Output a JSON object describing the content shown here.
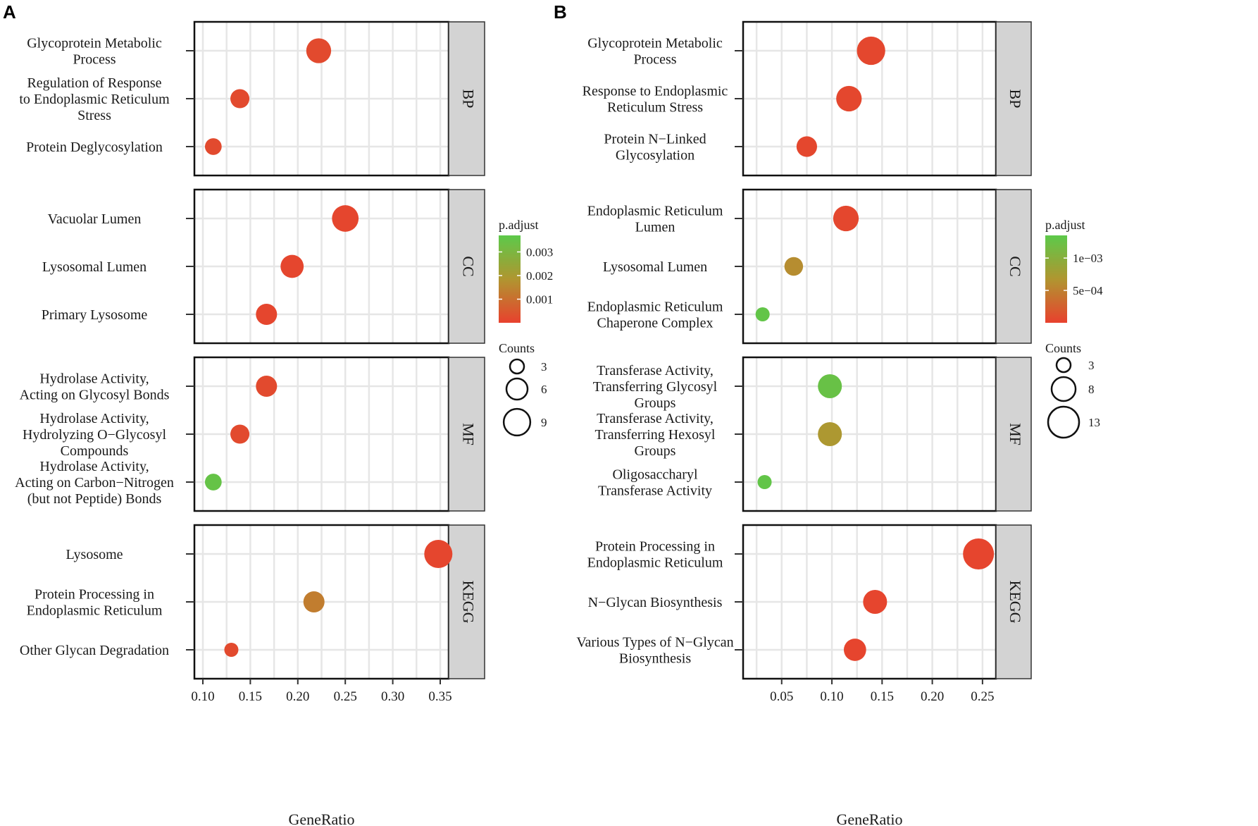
{
  "chart_data": [
    {
      "type": "scatter",
      "panel_label": "A",
      "xlabel": "GeneRatio",
      "xlim": [
        0.1,
        0.35
      ],
      "x_ticks": [
        0.1,
        0.15,
        0.2,
        0.25,
        0.3,
        0.35
      ],
      "x_tick_labels": [
        "0.10",
        "0.15",
        "0.20",
        "0.25",
        "0.30",
        "0.35"
      ],
      "color_legend": {
        "title": "p.adjust",
        "min": 0,
        "max": 0.0037,
        "ticks": [
          0.003,
          0.002,
          0.001
        ],
        "tick_labels": [
          "0.003",
          "0.002",
          "0.001"
        ],
        "low_color": "#e8412e",
        "high_color": "#5cc94a"
      },
      "size_legend": {
        "title": "Counts",
        "values": [
          3,
          6,
          9
        ],
        "labels": [
          "3",
          "6",
          "9"
        ]
      },
      "facets": [
        {
          "name": "BP",
          "terms": [
            {
              "label": [
                "Glycoprotein Metabolic",
                "Process"
              ],
              "x": 0.222,
              "count": 8,
              "p_adjust": 0.0002
            },
            {
              "label": [
                "Regulation of Response",
                "to Endoplasmic Reticulum",
                "Stress"
              ],
              "x": 0.139,
              "count": 5,
              "p_adjust": 0.0002
            },
            {
              "label": [
                "Protein Deglycosylation"
              ],
              "x": 0.111,
              "count": 4,
              "p_adjust": 0.0002
            }
          ]
        },
        {
          "name": "CC",
          "terms": [
            {
              "label": [
                "Vacuolar Lumen"
              ],
              "x": 0.25,
              "count": 9,
              "p_adjust": 0.0001
            },
            {
              "label": [
                "Lysosomal Lumen"
              ],
              "x": 0.194,
              "count": 7,
              "p_adjust": 0.0001
            },
            {
              "label": [
                "Primary Lysosome"
              ],
              "x": 0.167,
              "count": 6,
              "p_adjust": 0.0001
            }
          ]
        },
        {
          "name": "MF",
          "terms": [
            {
              "label": [
                "Hydrolase Activity,",
                "Acting on Glycosyl Bonds"
              ],
              "x": 0.167,
              "count": 6,
              "p_adjust": 0.0002
            },
            {
              "label": [
                "Hydrolase Activity,",
                "Hydrolyzing O−Glycosyl",
                "Compounds"
              ],
              "x": 0.139,
              "count": 5,
              "p_adjust": 0.0002
            },
            {
              "label": [
                "Hydrolase Activity,",
                "Acting on Carbon−Nitrogen",
                "(but not Peptide) Bonds"
              ],
              "x": 0.111,
              "count": 4,
              "p_adjust": 0.0035
            }
          ]
        },
        {
          "name": "KEGG",
          "terms": [
            {
              "label": [
                "Lysosome"
              ],
              "x": 0.348,
              "count": 10,
              "p_adjust": 0.0001
            },
            {
              "label": [
                "Protein Processing in",
                "Endoplasmic Reticulum"
              ],
              "x": 0.217,
              "count": 6,
              "p_adjust": 0.0013
            },
            {
              "label": [
                "Other Glycan Degradation"
              ],
              "x": 0.13,
              "count": 3,
              "p_adjust": 0.0002
            }
          ]
        }
      ]
    },
    {
      "type": "scatter",
      "panel_label": "B",
      "xlabel": "GeneRatio",
      "xlim": [
        0.02,
        0.255
      ],
      "x_ticks": [
        0.05,
        0.1,
        0.15,
        0.2,
        0.25
      ],
      "x_tick_labels": [
        "0.05",
        "0.10",
        "0.15",
        "0.20",
        "0.25"
      ],
      "color_legend": {
        "title": "p.adjust",
        "min": 0,
        "max": 0.00135,
        "ticks": [
          0.001,
          0.0005
        ],
        "tick_labels": [
          "1e−03",
          "5e−04"
        ],
        "low_color": "#e8412e",
        "high_color": "#5cc94a"
      },
      "size_legend": {
        "title": "Counts",
        "values": [
          3,
          8,
          13
        ],
        "labels": [
          "3",
          "8",
          "13"
        ]
      },
      "facets": [
        {
          "name": "BP",
          "terms": [
            {
              "label": [
                "Glycoprotein Metabolic",
                "Process"
              ],
              "x": 0.139,
              "count": 11,
              "p_adjust": 5e-05
            },
            {
              "label": [
                "Response to Endoplasmic",
                "Reticulum Stress"
              ],
              "x": 0.117,
              "count": 9,
              "p_adjust": 5e-05
            },
            {
              "label": [
                "Protein N−Linked",
                "Glycosylation"
              ],
              "x": 0.075,
              "count": 6,
              "p_adjust": 5e-05
            }
          ]
        },
        {
          "name": "CC",
          "terms": [
            {
              "label": [
                "Endoplasmic Reticulum",
                "Lumen"
              ],
              "x": 0.114,
              "count": 9,
              "p_adjust": 5e-05
            },
            {
              "label": [
                "Lysosomal Lumen"
              ],
              "x": 0.062,
              "count": 5,
              "p_adjust": 0.0006
            },
            {
              "label": [
                "Endoplasmic Reticulum",
                "Chaperone Complex"
              ],
              "x": 0.031,
              "count": 3,
              "p_adjust": 0.0013
            }
          ]
        },
        {
          "name": "MF",
          "terms": [
            {
              "label": [
                "Transferase Activity,",
                "Transferring Glycosyl",
                "Groups"
              ],
              "x": 0.098,
              "count": 8,
              "p_adjust": 0.00125
            },
            {
              "label": [
                "Transferase Activity,",
                "Transferring Hexosyl",
                "Groups"
              ],
              "x": 0.098,
              "count": 8,
              "p_adjust": 0.0007
            },
            {
              "label": [
                "Oligosaccharyl",
                "Transferase Activity"
              ],
              "x": 0.033,
              "count": 3,
              "p_adjust": 0.0013
            }
          ]
        },
        {
          "name": "KEGG",
          "terms": [
            {
              "label": [
                "Protein Processing in",
                "Endoplasmic Reticulum"
              ],
              "x": 0.246,
              "count": 13,
              "p_adjust": 3e-05
            },
            {
              "label": [
                "N−Glycan Biosynthesis"
              ],
              "x": 0.143,
              "count": 8,
              "p_adjust": 3e-05
            },
            {
              "label": [
                "Various Types of N−Glycan",
                "Biosynthesis"
              ],
              "x": 0.123,
              "count": 7,
              "p_adjust": 3e-05
            }
          ]
        }
      ]
    }
  ]
}
